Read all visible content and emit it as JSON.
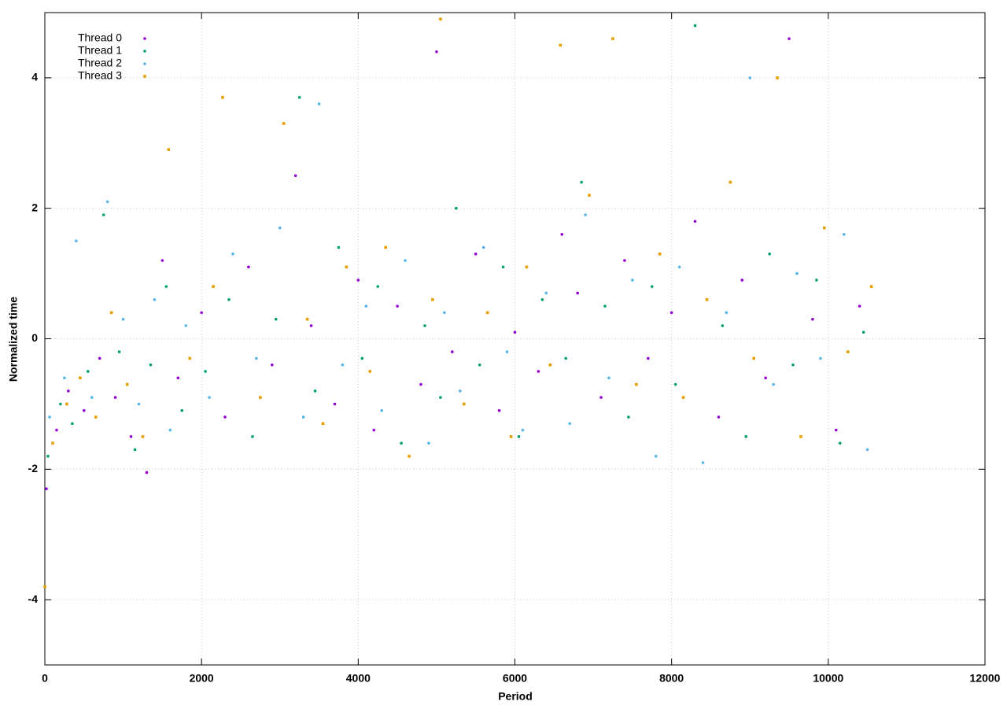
{
  "chart_data": {
    "type": "scatter",
    "x_label": "Period",
    "y_label": "Normalized time",
    "xlim": [
      0,
      12000
    ],
    "xticks": [
      0,
      2000,
      4000,
      6000,
      8000,
      10000,
      12000
    ],
    "ylim": [
      -5,
      5
    ],
    "yticks": [
      -4,
      -2,
      0,
      2,
      4
    ],
    "grid": true,
    "legend": "top-left",
    "series": [
      {
        "name": "Thread 0",
        "color": "#9400d3",
        "marker": "dot",
        "x": [
          20,
          150,
          300,
          500,
          700,
          900,
          1100,
          1300,
          1500,
          1700,
          2000,
          2300,
          2600,
          2900,
          3200,
          3400,
          3700,
          4000,
          4200,
          4500,
          4800,
          5000,
          5200,
          5500,
          5800,
          6000,
          6300,
          6600,
          6800,
          7100,
          7400,
          7700,
          8000,
          8300,
          8600,
          8900,
          9200,
          9500,
          9800,
          10100,
          10400
        ],
        "values": [
          -2.3,
          -1.4,
          -0.8,
          -1.1,
          -0.3,
          -0.9,
          -1.5,
          -2.05,
          1.2,
          -0.6,
          0.4,
          -1.2,
          1.1,
          -0.4,
          2.5,
          0.2,
          -1.0,
          0.9,
          -1.4,
          0.5,
          -0.7,
          4.4,
          -0.2,
          1.3,
          -1.1,
          0.1,
          -0.5,
          1.6,
          0.7,
          -0.9,
          1.2,
          -0.3,
          0.4,
          1.8,
          -1.2,
          0.9,
          -0.6,
          4.6,
          0.3,
          -1.4,
          0.5
        ]
      },
      {
        "name": "Thread 1",
        "color": "#009e73",
        "marker": "dot",
        "x": [
          40,
          200,
          350,
          550,
          750,
          950,
          1150,
          1350,
          1550,
          1750,
          2050,
          2350,
          2650,
          2950,
          3250,
          3450,
          3750,
          4050,
          4250,
          4550,
          4850,
          5050,
          5250,
          5550,
          5850,
          6050,
          6350,
          6650,
          6850,
          7150,
          7450,
          7750,
          8050,
          8300,
          8650,
          8950,
          9250,
          9550,
          9850,
          10150,
          10450
        ],
        "values": [
          -1.8,
          -1.0,
          -1.3,
          -0.5,
          1.9,
          -0.2,
          -1.7,
          -0.4,
          0.8,
          -1.1,
          -0.5,
          0.6,
          -1.5,
          0.3,
          3.7,
          -0.8,
          1.4,
          -0.3,
          0.8,
          -1.6,
          0.2,
          -0.9,
          2.0,
          -0.4,
          1.1,
          -1.5,
          0.6,
          -0.3,
          2.4,
          0.5,
          -1.2,
          0.8,
          -0.7,
          4.8,
          0.2,
          -1.5,
          1.3,
          -0.4,
          0.9,
          -1.6,
          0.1
        ]
      },
      {
        "name": "Thread 2",
        "color": "#56b4e9",
        "marker": "dot",
        "x": [
          60,
          250,
          400,
          600,
          800,
          1000,
          1200,
          1400,
          1600,
          1800,
          2100,
          2400,
          2700,
          3000,
          3300,
          3500,
          3800,
          4100,
          4300,
          4600,
          4900,
          5100,
          5300,
          5600,
          5900,
          6100,
          6400,
          6700,
          6900,
          7200,
          7500,
          7800,
          8100,
          8400,
          8700,
          9000,
          9300,
          9600,
          9900,
          10200,
          10500
        ],
        "values": [
          -1.2,
          -0.6,
          1.5,
          -0.9,
          2.1,
          0.3,
          -1.0,
          0.6,
          -1.4,
          0.2,
          -0.9,
          1.3,
          -0.3,
          1.7,
          -1.2,
          3.6,
          -0.4,
          0.5,
          -1.1,
          1.2,
          -1.6,
          0.4,
          -0.8,
          1.4,
          -0.2,
          -1.4,
          0.7,
          -1.3,
          1.9,
          -0.6,
          0.9,
          -1.8,
          1.1,
          -1.9,
          0.4,
          4.0,
          -0.7,
          1.0,
          -0.3,
          1.6,
          -1.7
        ]
      },
      {
        "name": "Thread 3",
        "color": "#e69f00",
        "marker": "square",
        "x": [
          0,
          100,
          280,
          450,
          650,
          850,
          1050,
          1250,
          1580,
          1850,
          2150,
          2270,
          2750,
          3050,
          3350,
          3550,
          3850,
          4150,
          4350,
          4650,
          4950,
          5050,
          5350,
          5650,
          5950,
          6150,
          6450,
          6580,
          6950,
          7250,
          7550,
          7850,
          8150,
          8450,
          8750,
          9050,
          9350,
          9650,
          9950,
          10250,
          10550
        ],
        "values": [
          -3.8,
          -1.6,
          -1.0,
          -0.6,
          -1.2,
          0.4,
          -0.7,
          -1.5,
          2.9,
          -0.3,
          0.8,
          3.7,
          -0.9,
          3.3,
          0.3,
          -1.3,
          1.1,
          -0.5,
          1.4,
          -1.8,
          0.6,
          4.9,
          -1.0,
          0.4,
          -1.5,
          1.1,
          -0.4,
          4.5,
          2.2,
          4.6,
          -0.7,
          1.3,
          -0.9,
          0.6,
          2.4,
          -0.3,
          4.0,
          -1.5,
          1.7,
          -0.2,
          0.8
        ]
      }
    ]
  }
}
